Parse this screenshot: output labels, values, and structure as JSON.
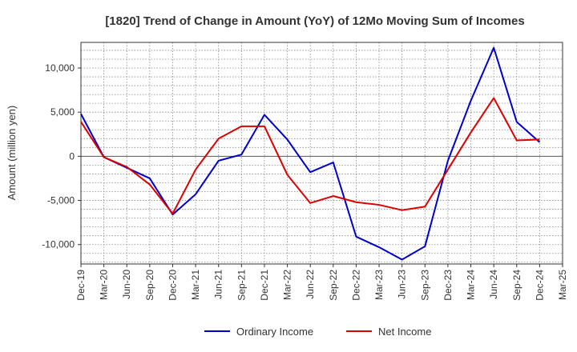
{
  "chart_data": {
    "type": "line",
    "title": "[1820]  Trend of Change in Amount (YoY) of 12Mo Moving Sum of Incomes",
    "xlabel": "",
    "ylabel": "Amount (million yen)",
    "categories": [
      "Dec-19",
      "Mar-20",
      "Jun-20",
      "Sep-20",
      "Dec-20",
      "Mar-21",
      "Jun-21",
      "Sep-21",
      "Dec-21",
      "Mar-22",
      "Jun-22",
      "Sep-22",
      "Dec-22",
      "Mar-23",
      "Jun-23",
      "Sep-23",
      "Dec-23",
      "Mar-24",
      "Jun-24",
      "Sep-24",
      "Dec-24",
      "Mar-25"
    ],
    "yticks": [
      10000,
      5000,
      0,
      -5000,
      -10000
    ],
    "ytick_labels": [
      "10,000",
      "5,000",
      "0",
      "-5,000",
      "-10,000"
    ],
    "ylim": [
      -12200,
      12900
    ],
    "grid": true,
    "legend_position": "bottom",
    "series": [
      {
        "name": "Ordinary Income",
        "color": "#0000cc",
        "values": [
          4800,
          -100,
          -1300,
          -2500,
          -6600,
          -4300,
          -500,
          200,
          4700,
          1900,
          -1800,
          -700,
          -9100,
          -10300,
          -11700,
          -10200,
          -500,
          6300,
          12300,
          3900,
          1600,
          null
        ]
      },
      {
        "name": "Net Income",
        "color": "#dd0000",
        "values": [
          3900,
          -100,
          -1200,
          -3200,
          -6500,
          -1500,
          2000,
          3400,
          3400,
          -2100,
          -5300,
          -4500,
          -5200,
          -5500,
          -6100,
          -5700,
          -1500,
          2700,
          6600,
          1800,
          1900,
          null
        ]
      }
    ]
  }
}
